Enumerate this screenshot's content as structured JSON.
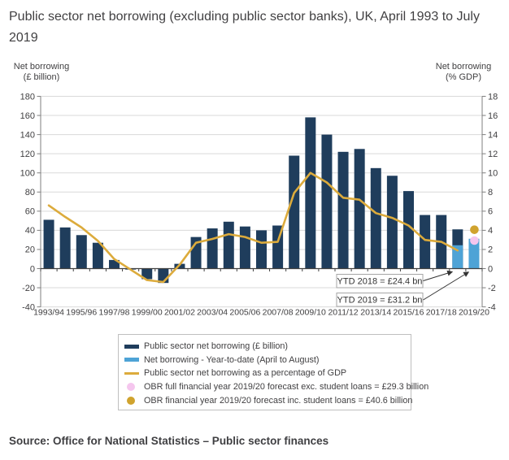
{
  "title": "Public sector net borrowing (excluding public sector banks), UK, April 1993 to July 2019",
  "axis_left_unit": {
    "line1": "Net borrowing",
    "line2": "(£ billion)"
  },
  "axis_right_unit": {
    "line1": "Net borrowing",
    "line2": "(% GDP)"
  },
  "source": "Source: Office for National Statistics – Public sector finances",
  "chart_data": {
    "type": "bar",
    "subtype": "bar + line combo, dual axis",
    "title": "Public sector net borrowing (excluding public sector banks), UK, April 1993 to July 2019",
    "categories": [
      "1993/94",
      "1994/95",
      "1995/96",
      "1996/97",
      "1997/98",
      "1998/99",
      "1999/00",
      "2000/01",
      "2001/02",
      "2002/03",
      "2003/04",
      "2004/05",
      "2005/06",
      "2006/07",
      "2007/08",
      "2008/09",
      "2009/10",
      "2010/11",
      "2011/12",
      "2012/13",
      "2013/14",
      "2014/15",
      "2015/16",
      "2016/17",
      "2017/18",
      "2018/19",
      "2019/20"
    ],
    "x_tick_interval": 2,
    "y_axis_left": {
      "label": "Net borrowing (£ billion)",
      "min": -40,
      "max": 180,
      "step": 20
    },
    "y_axis_right": {
      "label": "Net borrowing (% GDP)",
      "min": -4,
      "max": 18,
      "step": 2
    },
    "grid": "horizontal gridlines on",
    "series": [
      {
        "name": "Public sector net borrowing (£ billion)",
        "type": "bar",
        "axis": "left",
        "color": "#1f3d5c",
        "values": [
          51,
          43,
          35,
          27,
          9,
          -1,
          -11,
          -15,
          5,
          33,
          42,
          49,
          44,
          40,
          45,
          118,
          158,
          140,
          122,
          125,
          105,
          97,
          81,
          56,
          56,
          41,
          null
        ]
      },
      {
        "name": "Net borrowing - Year-to-date (April to August)",
        "type": "bar-overlay",
        "axis": "left",
        "color": "#4ea3d6",
        "values": [
          null,
          null,
          null,
          null,
          null,
          null,
          null,
          null,
          null,
          null,
          null,
          null,
          null,
          null,
          null,
          null,
          null,
          null,
          null,
          null,
          null,
          null,
          null,
          null,
          null,
          24.4,
          31.2
        ]
      },
      {
        "name": "Public sector net borrowing as a percentage of GDP",
        "type": "line",
        "axis": "right",
        "color": "#dcab3c",
        "values": [
          6.6,
          5.4,
          4.3,
          2.9,
          1.0,
          -0.1,
          -1.2,
          -1.4,
          0.4,
          2.7,
          3.1,
          3.6,
          3.3,
          2.7,
          2.8,
          7.9,
          10.0,
          9.0,
          7.4,
          7.2,
          5.8,
          5.3,
          4.5,
          3.0,
          2.8,
          1.9,
          null
        ]
      }
    ],
    "points": [
      {
        "name": "OBR full financial year 2019/20 forecast exc. student loans = £29.3 billion",
        "category": "2019/20",
        "axis": "left",
        "value": 29.3,
        "color": "#f5c6ee"
      },
      {
        "name": "OBR financial year 2019/20 forecast inc. student loans = £40.6 billion",
        "category": "2019/20",
        "axis": "left",
        "value": 40.6,
        "color": "#d0a32e"
      }
    ],
    "annotations": [
      {
        "label": "YTD 2018 = £24.4 bn",
        "target_category": "2018/19"
      },
      {
        "label": "YTD 2019 = £31.2 bn",
        "target_category": "2019/20"
      }
    ],
    "legend_position": "bottom",
    "legend": [
      {
        "swatch": "bar",
        "color": "#1f3d5c",
        "label": "Public sector net borrowing (£ billion)"
      },
      {
        "swatch": "bar",
        "color": "#4ea3d6",
        "label": "Net borrowing - Year-to-date (April to August)"
      },
      {
        "swatch": "line",
        "color": "#dcab3c",
        "label": "Public sector net borrowing as a percentage of GDP"
      },
      {
        "swatch": "dot",
        "color": "#f5c6ee",
        "label": "OBR full financial year 2019/20 forecast exc. student loans = £29.3 billion"
      },
      {
        "swatch": "dot",
        "color": "#d0a32e",
        "label": "OBR financial year 2019/20 forecast inc. student loans = £40.6 billion"
      }
    ]
  }
}
